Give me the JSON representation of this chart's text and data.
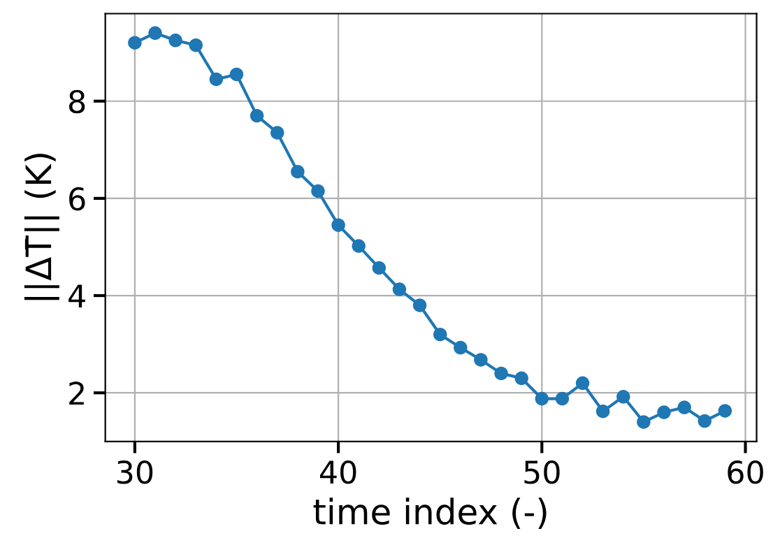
{
  "chart_data": {
    "type": "line",
    "xlabel": "time index (-)",
    "ylabel": "||ΔT̄|| (K)",
    "x": [
      30,
      31,
      32,
      33,
      34,
      35,
      36,
      37,
      38,
      39,
      40,
      41,
      42,
      43,
      44,
      45,
      46,
      47,
      48,
      49,
      50,
      51,
      52,
      53,
      54,
      55,
      56,
      57,
      58,
      59
    ],
    "series": [
      {
        "color": "#1f77b4",
        "values": [
          9.2,
          9.4,
          9.25,
          9.15,
          8.45,
          8.55,
          7.7,
          7.35,
          6.55,
          6.15,
          5.45,
          5.02,
          4.57,
          4.13,
          3.8,
          3.2,
          2.93,
          2.68,
          2.4,
          2.3,
          1.88,
          1.88,
          2.2,
          1.62,
          1.92,
          1.4,
          1.6,
          1.7,
          1.42,
          1.63
        ]
      }
    ],
    "xlim": [
      28.55,
      60.55
    ],
    "ylim": [
      1.0,
      9.8
    ],
    "xticks": [
      30,
      40,
      50,
      60
    ],
    "yticks": [
      2,
      4,
      6,
      8
    ],
    "grid": true,
    "marker": "circle",
    "line_style": "solid"
  }
}
